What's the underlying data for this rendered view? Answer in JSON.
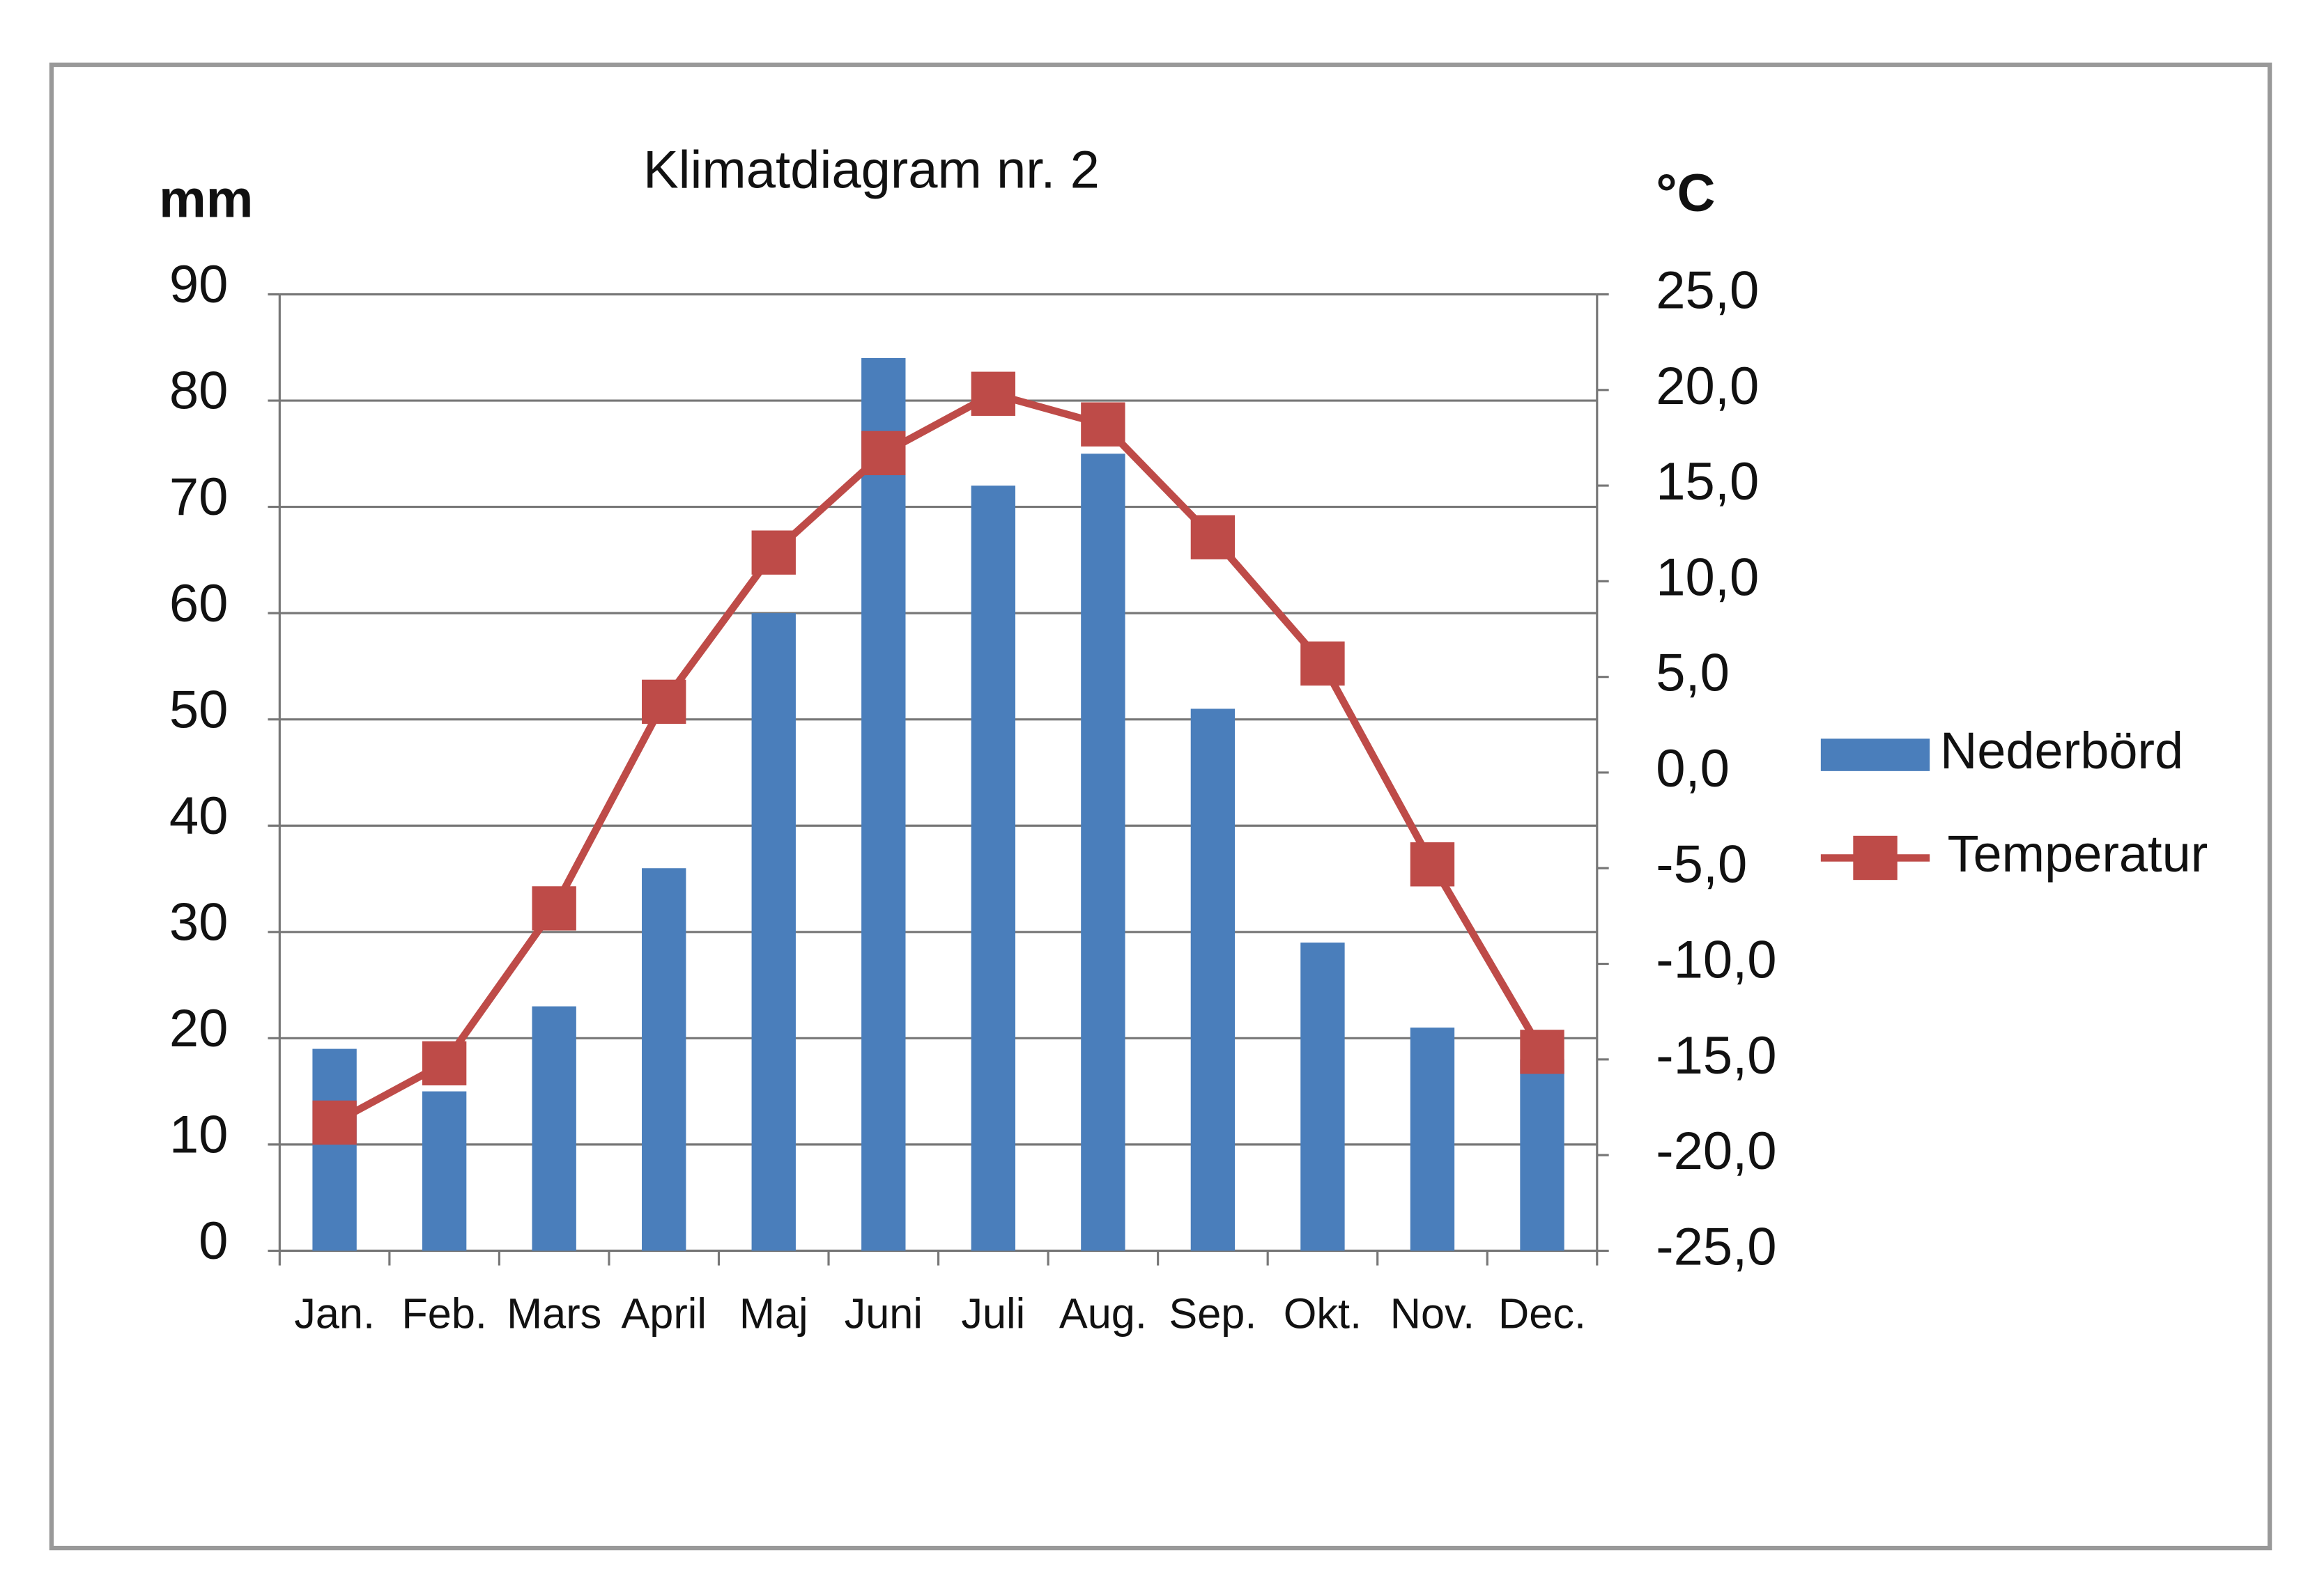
{
  "chart_data": {
    "type": "bar-line",
    "title": "Klimatdiagram nr. 2",
    "y_label": "mm",
    "y2_label": "°C",
    "categories": [
      "Jan.",
      "Feb.",
      "Mars",
      "April",
      "Maj",
      "Juni",
      "Juli",
      "Aug.",
      "Sep.",
      "Okt.",
      "Nov.",
      "Dec."
    ],
    "series": [
      {
        "name": "Nederbörd",
        "type": "bar",
        "color": "#4a7ebb",
        "values": [
          19,
          15,
          23,
          36,
          60,
          84,
          72,
          75,
          51,
          29,
          21,
          18
        ]
      },
      {
        "name": "Temperatur",
        "type": "line",
        "axis": "y2",
        "color": "#be4b48",
        "values": [
          -18.3,
          -15.2,
          -7.1,
          3.7,
          11.5,
          16.7,
          19.8,
          18.2,
          12.3,
          5.7,
          -4.8,
          -14.6
        ]
      }
    ],
    "ylim": [
      0,
      90
    ],
    "yticks": [
      0,
      10,
      20,
      30,
      40,
      50,
      60,
      70,
      80,
      90
    ],
    "y2lim": [
      -25,
      25
    ],
    "y2ticks": [
      {
        "value": -25,
        "label": "-25,0"
      },
      {
        "value": -20,
        "label": "-20,0"
      },
      {
        "value": -15,
        "label": "-15,0"
      },
      {
        "value": -10,
        "label": "-10,0"
      },
      {
        "value": -5,
        "label": "-5,0"
      },
      {
        "value": 0,
        "label": "0,0"
      },
      {
        "value": 5,
        "label": "5,0"
      },
      {
        "value": 10,
        "label": "10,0"
      },
      {
        "value": 15,
        "label": "15,0"
      },
      {
        "value": 20,
        "label": "20,0"
      },
      {
        "value": 25,
        "label": "25,0"
      }
    ],
    "grid": true,
    "legend": "right"
  }
}
